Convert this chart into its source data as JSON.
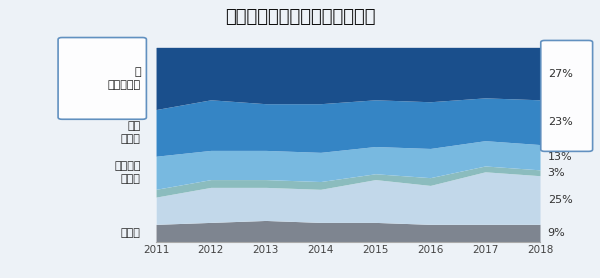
{
  "title": "最有可能造成增重的卡路里来源",
  "years": [
    2011,
    2012,
    2013,
    2014,
    2015,
    2016,
    2017,
    2018
  ],
  "colors": [
    "#1a4f8c",
    "#3585c5",
    "#78b9e0",
    "#8bbcbe",
    "#c2d8ea",
    "#7e8590"
  ],
  "series": [
    [
      32,
      27,
      29,
      29,
      27,
      28,
      26,
      27
    ],
    [
      24,
      26,
      24,
      25,
      24,
      24,
      22,
      23
    ],
    [
      17,
      15,
      15,
      15,
      14,
      15,
      13,
      13
    ],
    [
      4,
      4,
      4,
      4,
      3,
      4,
      3,
      3
    ],
    [
      14,
      18,
      17,
      17,
      22,
      20,
      27,
      25
    ],
    [
      9,
      10,
      11,
      10,
      10,
      9,
      9,
      9
    ]
  ],
  "stack_order": [
    5,
    4,
    3,
    2,
    1,
    0
  ],
  "left_labels": [
    {
      "text": "糖\n碳水化合物",
      "series_idx": 0,
      "boxed": true
    },
    {
      "text": "脂肪\n蛋白质",
      "series_idx": 1,
      "boxed": false
    },
    {
      "text": "所有来源\n都一样",
      "series_idx": 2,
      "boxed": false
    },
    {
      "text": "不确定",
      "series_idx": 5,
      "boxed": false
    }
  ],
  "right_labels": [
    {
      "text": "27%",
      "series_idx": 0
    },
    {
      "text": "23%",
      "series_idx": 1
    },
    {
      "text": "13%",
      "series_idx": 2
    },
    {
      "text": "3%",
      "series_idx": 3
    },
    {
      "text": "25%",
      "series_idx": 4
    },
    {
      "text": "9%",
      "series_idx": 5
    }
  ],
  "fig_bg": "#edf2f7",
  "ax_bg": "#ffffff",
  "title_fontsize": 13,
  "label_fontsize": 8,
  "pct_fontsize": 8
}
